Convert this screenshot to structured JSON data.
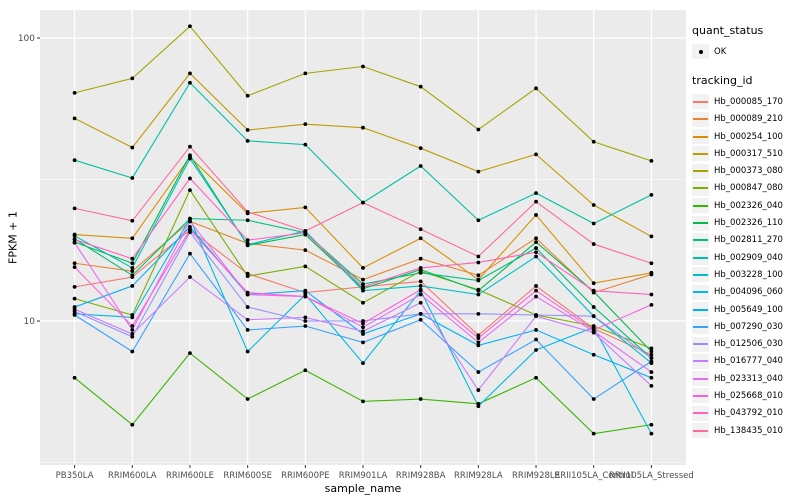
{
  "figure": {
    "background": "#FFFFFF",
    "panel_bg": "#EBEBEB",
    "grid_color": "#FFFFFF",
    "axis_text_color": "#4D4D4D",
    "tick_color": "#333333",
    "point_color": "#000000",
    "legend_key_bg": "#F2F2F2"
  },
  "axes": {
    "x_title": "sample_name",
    "y_title": "FPKM + 1",
    "y_tick_labels": [
      "100",
      "10"
    ],
    "y_tick_values": [
      100,
      10
    ],
    "y_minor_values": [
      31.623,
      3.1623
    ]
  },
  "legend": {
    "quant_status_title": "quant_status",
    "quant_status_items": [
      {
        "label": "OK",
        "symbol": "point"
      }
    ],
    "tracking_title": "tracking_id"
  },
  "chart_data": {
    "type": "line",
    "title": "",
    "xlabel": "sample_name",
    "ylabel": "FPKM + 1",
    "y_scale": "log10",
    "ylim": [
      3.2,
      125
    ],
    "grid": true,
    "legend_position": "right",
    "categories": [
      "PB350LA",
      "RRIM600LA",
      "RRIM600LE",
      "RRIM600SE",
      "RRIM600PE",
      "RRIM901LA",
      "RRIM928BA",
      "RRIM928LA",
      "RRIM928LE",
      "RRII105LA_Control",
      "RRII105LA_Stressed"
    ],
    "series": [
      {
        "name": "Hb_000085_170",
        "color": "#F8766D",
        "values": [
          13.2,
          14.3,
          21.0,
          14.7,
          12.6,
          13.2,
          13.8,
          8.9,
          13.3,
          9.4,
          7.6
        ]
      },
      {
        "name": "Hb_000089_210",
        "color": "#EA8331",
        "values": [
          16.0,
          15.0,
          22.5,
          18.8,
          17.8,
          14.0,
          16.6,
          14.5,
          19.6,
          12.6,
          14.6
        ]
      },
      {
        "name": "Hb_000254_100",
        "color": "#D89000",
        "values": [
          20.2,
          19.6,
          38.0,
          24.0,
          25.2,
          15.4,
          19.6,
          14.0,
          23.7,
          13.6,
          14.8
        ]
      },
      {
        "name": "Hb_000317_510",
        "color": "#C09B00",
        "values": [
          52.0,
          41.0,
          75.0,
          47.3,
          49.6,
          48.2,
          40.8,
          33.7,
          38.8,
          25.7,
          19.9
        ]
      },
      {
        "name": "Hb_000373_080",
        "color": "#A3A500",
        "values": [
          64.0,
          72.0,
          110.0,
          62.5,
          75.0,
          79.3,
          67.3,
          47.5,
          66.4,
          43.0,
          36.8
        ]
      },
      {
        "name": "Hb_000847_080",
        "color": "#7CAE00",
        "values": [
          12.0,
          10.5,
          29.0,
          14.4,
          15.6,
          11.6,
          15.0,
          12.9,
          10.5,
          9.6,
          8.0
        ]
      },
      {
        "name": "Hb_002326_040",
        "color": "#39B600",
        "values": [
          6.3,
          4.3,
          7.7,
          5.3,
          6.7,
          5.2,
          5.3,
          5.1,
          6.3,
          4.0,
          4.3
        ]
      },
      {
        "name": "Hb_002326_110",
        "color": "#00BB4E",
        "values": [
          19.0,
          16.0,
          38.5,
          18.5,
          20.2,
          13.0,
          15.2,
          12.8,
          19.0,
          12.7,
          7.8
        ]
      },
      {
        "name": "Hb_002811_270",
        "color": "#00BF7D",
        "values": [
          19.5,
          14.5,
          23.0,
          22.7,
          20.5,
          13.5,
          14.8,
          13.9,
          18.1,
          11.2,
          7.4
        ]
      },
      {
        "name": "Hb_002909_040",
        "color": "#00C1A3",
        "values": [
          37.0,
          32.0,
          69.5,
          43.3,
          42.0,
          26.2,
          35.3,
          22.7,
          28.3,
          22.1,
          27.9
        ]
      },
      {
        "name": "Hb_003228_100",
        "color": "#00BFC4",
        "values": [
          20.0,
          15.4,
          37.5,
          18.6,
          20.8,
          12.8,
          13.3,
          12.4,
          16.9,
          10.4,
          7.1
        ]
      },
      {
        "name": "Hb_004096_060",
        "color": "#00BAE0",
        "values": [
          10.6,
          10.3,
          23.0,
          7.8,
          12.4,
          7.1,
          12.8,
          5.0,
          7.9,
          9.5,
          4.0
        ]
      },
      {
        "name": "Hb_005649_100",
        "color": "#00B0F6",
        "values": [
          11.2,
          13.3,
          21.5,
          12.4,
          12.8,
          9.0,
          10.6,
          8.2,
          9.3,
          7.6,
          6.3
        ]
      },
      {
        "name": "Hb_007290_030",
        "color": "#35A2FF",
        "values": [
          10.5,
          7.8,
          17.3,
          9.3,
          9.6,
          8.4,
          10.1,
          6.6,
          8.6,
          5.3,
          7.2
        ]
      },
      {
        "name": "Hb_012506_030",
        "color": "#9590FF",
        "values": [
          10.8,
          8.8,
          20.6,
          11.2,
          10.0,
          10.0,
          10.6,
          10.6,
          10.5,
          10.4,
          7.4
        ]
      },
      {
        "name": "Hb_016777_040",
        "color": "#C77CFF",
        "values": [
          11.0,
          9.0,
          14.3,
          10.1,
          10.3,
          9.2,
          11.6,
          5.7,
          10.4,
          9.1,
          5.9
        ]
      },
      {
        "name": "Hb_023313_040",
        "color": "#E76BF3",
        "values": [
          18.9,
          9.3,
          22.5,
          12.4,
          12.2,
          9.5,
          12.4,
          8.4,
          12.2,
          9.2,
          6.6
        ]
      },
      {
        "name": "Hb_025668_010",
        "color": "#FA62DB",
        "values": [
          15.5,
          9.6,
          21.0,
          12.6,
          12.2,
          9.8,
          12.9,
          8.7,
          12.8,
          9.3,
          11.4
        ]
      },
      {
        "name": "Hb_043792_010",
        "color": "#FF62BC",
        "values": [
          19.4,
          16.6,
          31.9,
          19.3,
          20.5,
          13.2,
          15.4,
          16.1,
          17.5,
          12.8,
          12.4
        ]
      },
      {
        "name": "Hb_138435_010",
        "color": "#FF6A98",
        "values": [
          25.0,
          22.6,
          41.3,
          24.3,
          20.8,
          26.2,
          21.1,
          16.9,
          26.4,
          18.7,
          16.0
        ]
      }
    ]
  }
}
